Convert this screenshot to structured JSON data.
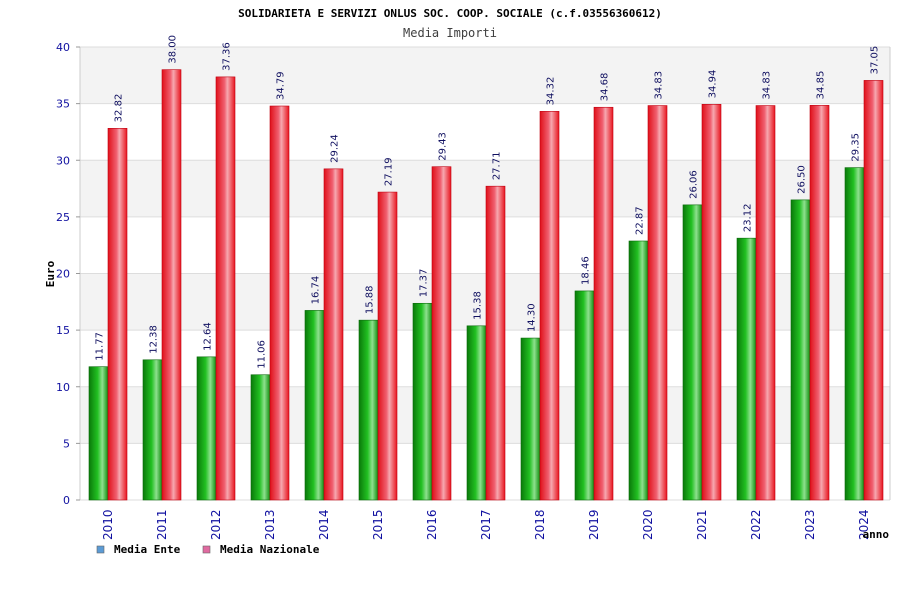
{
  "chart_data": {
    "type": "bar",
    "title": "SOLIDARIETA E SERVIZI ONLUS SOC. COOP. SOCIALE (c.f.03556360612)",
    "subtitle": "Media Importi",
    "ylabel": "Euro",
    "xlabel": "anno",
    "ylim": [
      0,
      40
    ],
    "yticks": [
      "0",
      "5",
      "10",
      "15",
      "20",
      "25",
      "30",
      "35",
      "40"
    ],
    "categories": [
      "2010",
      "2011",
      "2012",
      "2013",
      "2014",
      "2015",
      "2016",
      "2017",
      "2018",
      "2019",
      "2020",
      "2021",
      "2022",
      "2023",
      "2024"
    ],
    "series": [
      {
        "name": "Media Ente",
        "color": "#1aa01a",
        "legend_color": "#5b9bd5",
        "values": [
          11.77,
          12.38,
          12.64,
          11.06,
          16.74,
          15.88,
          17.37,
          15.38,
          14.3,
          18.46,
          22.87,
          26.06,
          23.12,
          26.5,
          29.35
        ],
        "labels": [
          "11.77",
          "12.38",
          "12.64",
          "11.06",
          "16.74",
          "15.88",
          "17.37",
          "15.38",
          "14.30",
          "18.46",
          "22.87",
          "26.06",
          "23.12",
          "26.50",
          "29.35"
        ]
      },
      {
        "name": "Media Nazionale",
        "color": "#e8141e",
        "legend_color": "#e06aa0",
        "values": [
          32.82,
          38.0,
          37.36,
          34.79,
          29.24,
          27.19,
          29.43,
          27.71,
          34.32,
          34.68,
          34.83,
          34.94,
          34.83,
          34.85,
          37.05
        ],
        "labels": [
          "32.82",
          "38.00",
          "37.36",
          "34.79",
          "29.24",
          "27.19",
          "29.43",
          "27.71",
          "34.32",
          "34.68",
          "34.83",
          "34.94",
          "34.83",
          "34.85",
          "37.05"
        ]
      }
    ],
    "grid": true,
    "legend": "bottom-left",
    "colors": {
      "band_light": "#f3f3f3",
      "band_white": "#ffffff",
      "gridline": "#dddddd",
      "tick_text": "#1010a0",
      "value_text": "#101060",
      "title_text": "#000000",
      "subtitle_text": "#404040"
    }
  }
}
